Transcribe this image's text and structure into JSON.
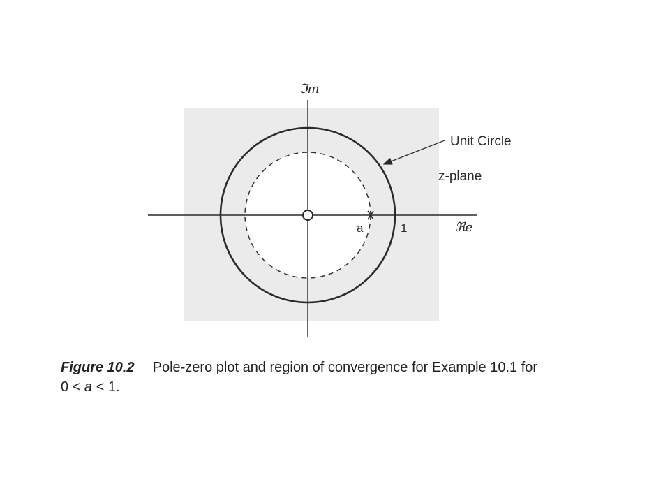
{
  "diagram": {
    "axis_labels": {
      "imag": "ℑm",
      "real": "ℜe"
    },
    "unit_circle_label": "Unit Circle",
    "plane_label": "z-plane",
    "pole_label": "a",
    "unit_tick_label": "1",
    "colors": {
      "roc": "#ebebeb",
      "ink": "#2a2a2a",
      "background": "#ffffff"
    }
  },
  "caption": {
    "figure_label": "Figure 10.2",
    "text_line1": "Pole-zero plot and region of convergence for Example 10.1 for",
    "text_line2_prefix": "0 < ",
    "text_line2_var": "a",
    "text_line2_suffix": " < 1."
  }
}
